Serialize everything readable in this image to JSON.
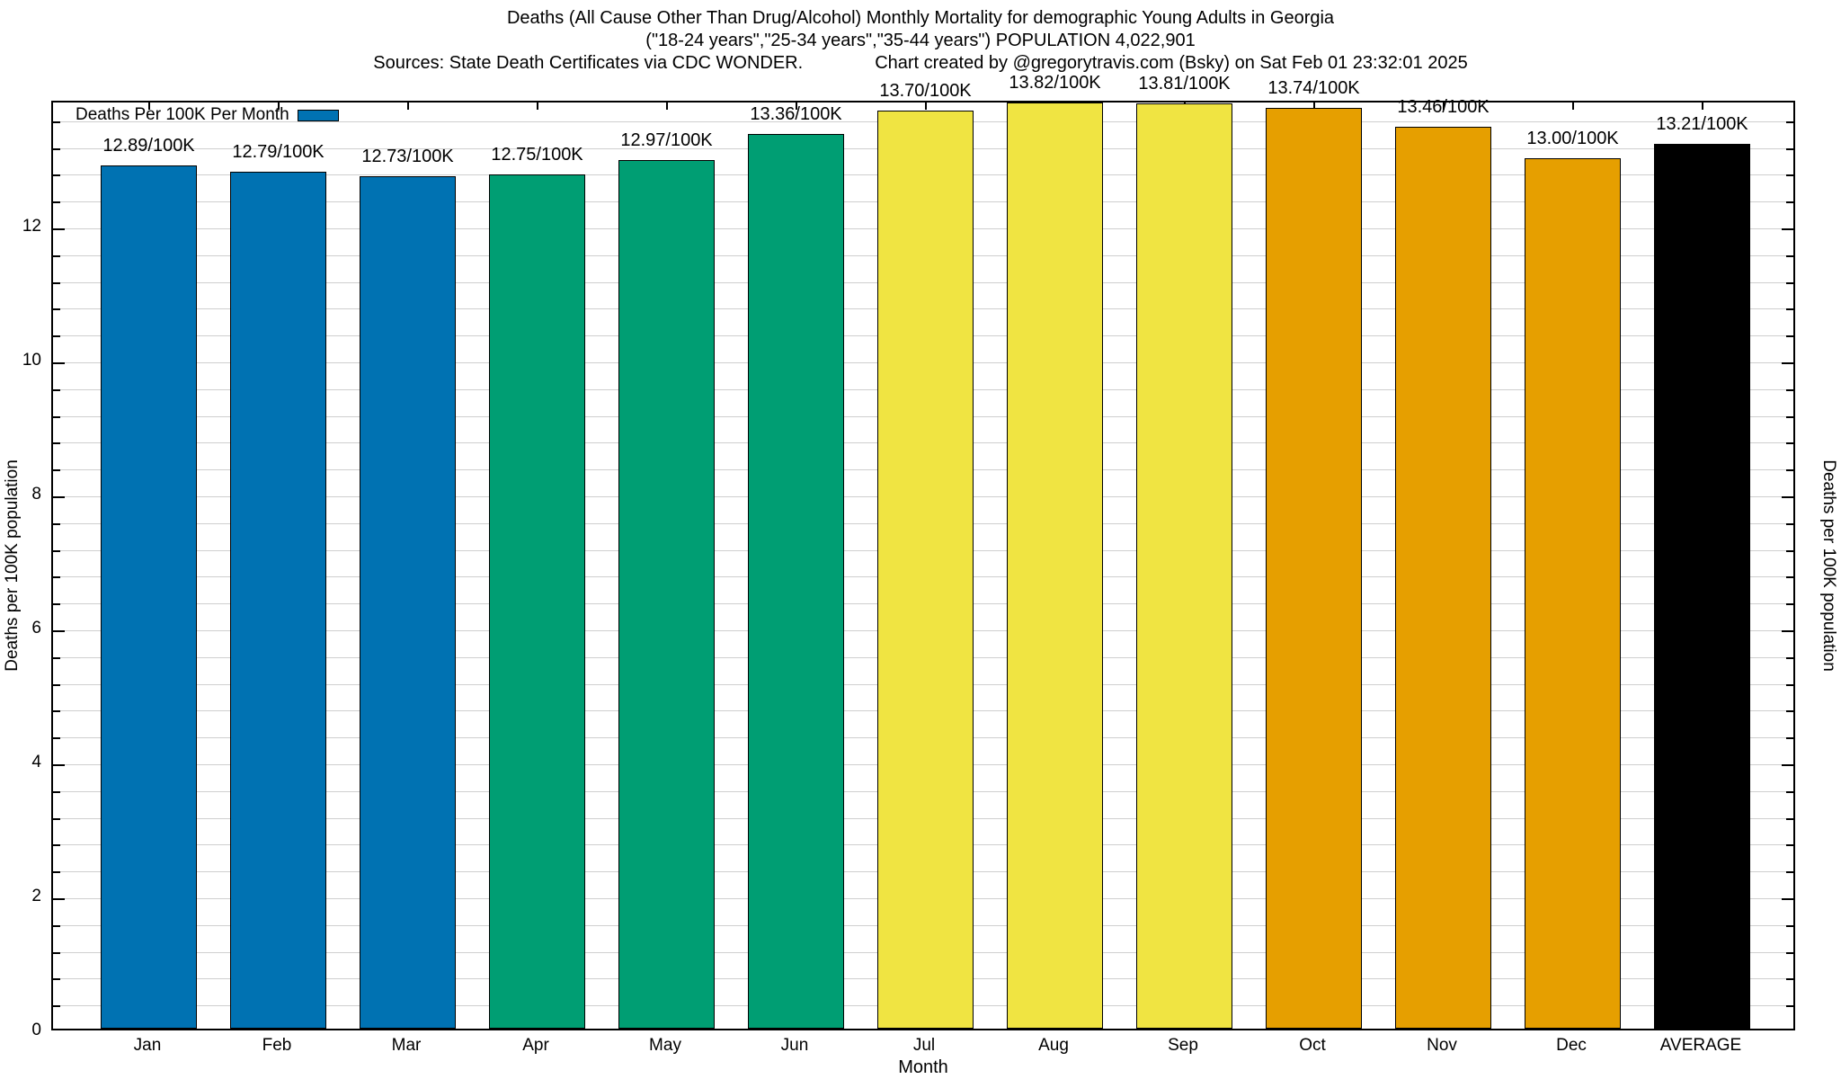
{
  "title": {
    "line1": "Deaths (All Cause Other Than Drug/Alcohol) Monthly Mortality for demographic Young Adults in Georgia",
    "line2": "(\"18-24 years\",\"25-34 years\",\"35-44 years\") POPULATION 4,022,901",
    "line3_left": "Sources: State Death Certificates via CDC WONDER.",
    "line3_right": "Chart created by @gregorytravis.com (Bsky) on Sat Feb 01 23:32:01 2025"
  },
  "legend": {
    "label": "Deaths Per 100K Per Month",
    "swatch_color": "#0072b2"
  },
  "axes": {
    "y_left_title": "Deaths per 100K population",
    "y_right_title": "Deaths per 100K population",
    "x_title": "Month"
  },
  "colors": {
    "blue": "#0072b2",
    "green": "#009e73",
    "yellow": "#f0e442",
    "orange": "#e69f00",
    "black": "#000000",
    "grid": "#cfcfcf"
  },
  "chart_data": {
    "type": "bar",
    "title": "Deaths (All Cause Other Than Drug/Alcohol) Monthly Mortality for demographic Young Adults in Georgia",
    "xlabel": "Month",
    "ylabel": "Deaths per 100K population",
    "categories": [
      "Jan",
      "Feb",
      "Mar",
      "Apr",
      "May",
      "Jun",
      "Jul",
      "Aug",
      "Sep",
      "Oct",
      "Nov",
      "Dec",
      "AVERAGE"
    ],
    "values": [
      12.89,
      12.79,
      12.73,
      12.75,
      12.97,
      13.36,
      13.7,
      13.82,
      13.81,
      13.74,
      13.46,
      13.0,
      13.21
    ],
    "bar_labels": [
      "12.89/100K",
      "12.79/100K",
      "12.73/100K",
      "12.75/100K",
      "12.97/100K",
      "13.36/100K",
      "13.70/100K",
      "13.82/100K",
      "13.81/100K",
      "13.74/100K",
      "13.46/100K",
      "13.00/100K",
      "13.21/100K"
    ],
    "bar_colors": [
      "#0072b2",
      "#0072b2",
      "#0072b2",
      "#009e73",
      "#009e73",
      "#009e73",
      "#f0e442",
      "#f0e442",
      "#f0e442",
      "#e69f00",
      "#e69f00",
      "#e69f00",
      "#000000"
    ],
    "ylim": [
      0,
      13.88
    ],
    "y_major_ticks": [
      0,
      2,
      4,
      6,
      8,
      10,
      12
    ],
    "y_minor_step": 0.4,
    "grid": "minor horizontal gridlines, light gray",
    "legend_position": "top-left inside plot"
  }
}
